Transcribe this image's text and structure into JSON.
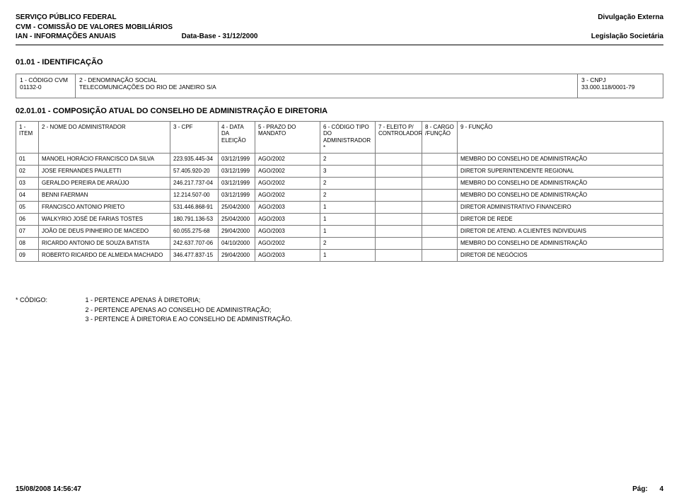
{
  "header": {
    "l1": "SERVIÇO PÚBLICO FEDERAL",
    "l2": "CVM - COMISSÃO DE VALORES MOBILIÁRIOS",
    "l3": "IAN - INFORMAÇÕES ANUAIS",
    "databaseLabel": "Data-Base - 31/12/2000",
    "r1": "Divulgação Externa",
    "r2": "Legislação Societária"
  },
  "section1": {
    "title": "01.01 - IDENTIFICAÇÃO",
    "c1Label": "1 - CÓDIGO CVM",
    "c1Value": "01132-0",
    "c2Label": "2 - DENOMINAÇÃO SOCIAL",
    "c2Value": "TELECOMUNICAÇÕES DO RIO DE JANEIRO S/A",
    "c3Label": "3 - CNPJ",
    "c3Value": "33.000.118/0001-79"
  },
  "section2": {
    "title": "02.01.01 - COMPOSIÇÃO ATUAL DO CONSELHO DE ADMINISTRAÇÃO E DIRETORIA",
    "cols": {
      "c1": "1 - ITEM",
      "c2": "2 - NOME DO ADMINISTRADOR",
      "c3": "3 - CPF",
      "c4": "4 - DATA DA ELEIÇÃO",
      "c5": "5 - PRAZO DO MANDATO",
      "c6": "6 - CÓDIGO TIPO DO ADMINISTRADOR *",
      "c7": "7 - ELEITO P/ CONTROLADOR",
      "c8": "8 - CARGO /FUNÇÃO",
      "c9": "9 - FUNÇÃO"
    },
    "rows": [
      {
        "item": "01",
        "nome": "MANOEL HORÁCIO FRANCISCO DA SILVA",
        "cpf": "223.935.445-34",
        "data": "03/12/1999",
        "prazo": "AGO/2002",
        "cod": "2",
        "eleito": "",
        "cargo": "",
        "funcao": "MEMBRO DO CONSELHO DE ADMINISTRAÇÃO"
      },
      {
        "item": "02",
        "nome": "JOSE FERNANDES PAULETTI",
        "cpf": "57.405.920-20",
        "data": "03/12/1999",
        "prazo": "AGO/2002",
        "cod": "3",
        "eleito": "",
        "cargo": "",
        "funcao": "DIRETOR SUPERINTENDENTE REGIONAL"
      },
      {
        "item": "03",
        "nome": "GERALDO PEREIRA DE ARAÚJO",
        "cpf": "246.217.737-04",
        "data": "03/12/1999",
        "prazo": "AGO/2002",
        "cod": "2",
        "eleito": "",
        "cargo": "",
        "funcao": "MEMBRO DO CONSELHO DE ADMINISTRAÇÃO"
      },
      {
        "item": "04",
        "nome": "BENNI FAERMAN",
        "cpf": "12.214.507-00",
        "data": "03/12/1999",
        "prazo": "AGO/2002",
        "cod": "2",
        "eleito": "",
        "cargo": "",
        "funcao": "MEMBRO DO CONSELHO DE ADMINISTRAÇÃO"
      },
      {
        "item": "05",
        "nome": "FRANCISCO ANTONIO PRIETO",
        "cpf": "531.446.868-91",
        "data": "25/04/2000",
        "prazo": "AGO/2003",
        "cod": "1",
        "eleito": "",
        "cargo": "",
        "funcao": "DIRETOR ADMINISTRATIVO FINANCEIRO"
      },
      {
        "item": "06",
        "nome": "WALKYRIO JOSÉ DE FARIAS TOSTES",
        "cpf": "180.791.136-53",
        "data": "25/04/2000",
        "prazo": "AGO/2003",
        "cod": "1",
        "eleito": "",
        "cargo": "",
        "funcao": "DIRETOR DE REDE"
      },
      {
        "item": "07",
        "nome": "JOÃO DE DEUS PINHEIRO DE MACEDO",
        "cpf": "60.055.275-68",
        "data": "29/04/2000",
        "prazo": "AGO/2003",
        "cod": "1",
        "eleito": "",
        "cargo": "",
        "funcao": "DIRETOR DE ATEND. A CLIENTES INDIVIDUAIS"
      },
      {
        "item": "08",
        "nome": "RICARDO ANTONIO DE SOUZA BATISTA",
        "cpf": "242.637.707-06",
        "data": "04/10/2000",
        "prazo": "AGO/2002",
        "cod": "2",
        "eleito": "",
        "cargo": "",
        "funcao": "MEMBRO DO CONSELHO DE ADMINISTRAÇÃO"
      },
      {
        "item": "09",
        "nome": "ROBERTO RICARDO DE ALMEIDA MACHADO",
        "cpf": "346.477.837-15",
        "data": "29/04/2000",
        "prazo": "AGO/2003",
        "cod": "1",
        "eleito": "",
        "cargo": "",
        "funcao": "DIRETOR DE NEGÓCIOS"
      }
    ]
  },
  "legend": {
    "label": "* CÓDIGO:",
    "l1": "1 - PERTENCE APENAS À DIRETORIA;",
    "l2": "2 - PERTENCE APENAS AO CONSELHO DE ADMINISTRAÇÃO;",
    "l3": "3 - PERTENCE À DIRETORIA E  AO CONSELHO DE ADMINISTRAÇÃO."
  },
  "footer": {
    "ts": "15/08/2008 14:56:47",
    "pageLabel": "Pág:",
    "pageNum": "4"
  },
  "colWidths": [
    "32px",
    "186px",
    "68px",
    "52px",
    "92px",
    "78px",
    "66px",
    "50px",
    "auto"
  ],
  "colors": {
    "border": "#7a7a7a",
    "text": "#000000",
    "bg": "#ffffff"
  }
}
